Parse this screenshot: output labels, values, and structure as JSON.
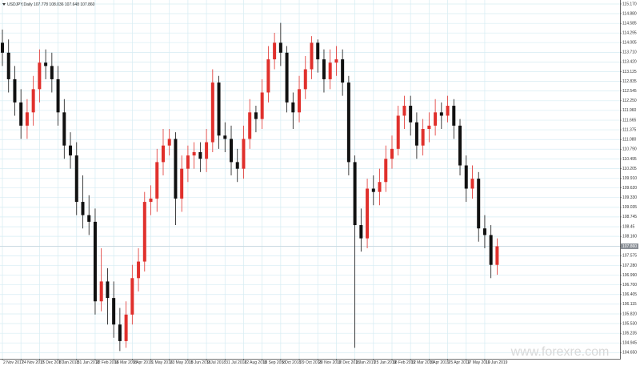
{
  "chart_data": {
    "type": "candlestick",
    "title": "USDJPY,Daily  107.778 108.036 107.648 107.860",
    "watermark": "www.forexre.com",
    "grid": true,
    "up_color": "#e0302c",
    "down_color": "#111111",
    "price_label": {
      "value": 107.86,
      "label": "107.860"
    },
    "categories": [
      "2 Nov 2017",
      null,
      null,
      "24 Nov 2017",
      null,
      null,
      "15 Dec 2017",
      null,
      null,
      "8 Jan 2018",
      null,
      null,
      "31 Jan 2018",
      null,
      null,
      "22 Feb 2018",
      null,
      null,
      "16 Mar 2018",
      null,
      null,
      "9 Apr 2018",
      null,
      null,
      "1 May 2018",
      null,
      null,
      "23 May 2018",
      null,
      null,
      "15 Jun 2018",
      null,
      null,
      "9 Jul 2018",
      null,
      null,
      "31 Jul 2018",
      null,
      null,
      "22 Aug 2018",
      null,
      null,
      "13 Sep 2018",
      null,
      null,
      "5 Oct 2018",
      null,
      null,
      "29 Oct 2018",
      null,
      null,
      "20 Nov 2018",
      null,
      null,
      "12 Dec 2018",
      null,
      null,
      "3 Jan 2019",
      null,
      null,
      "25 Jan 2019",
      null,
      null,
      "18 Feb 2019",
      null,
      null,
      "12 Mar 2019",
      null,
      null,
      "3 Apr 2019",
      null,
      null,
      "25 Apr 2019",
      null,
      null,
      "17 May 2019",
      null,
      null,
      "10 Jun 2019",
      null,
      null
    ],
    "open": [
      114.0,
      113.7,
      112.9,
      112.2,
      111.5,
      111.9,
      112.6,
      113.4,
      113.3,
      112.9,
      111.9,
      110.9,
      110.6,
      109.2,
      108.8,
      108.6,
      106.2,
      106.8,
      106.3,
      105.5,
      105.0,
      105.8,
      106.9,
      107.4,
      109.2,
      109.3,
      110.4,
      110.9,
      111.1,
      109.3,
      110.2,
      110.6,
      110.7,
      110.5,
      111.0,
      112.8,
      111.2,
      111.1,
      110.4,
      110.2,
      111.1,
      111.9,
      111.7,
      112.5,
      113.5,
      114.0,
      113.7,
      112.2,
      111.9,
      112.6,
      113.2,
      114.0,
      113.5,
      112.9,
      113.4,
      113.5,
      112.8,
      110.4,
      108.5,
      108.1,
      109.6,
      109.5,
      109.8,
      110.5,
      110.8,
      111.8,
      112.1,
      111.6,
      110.9,
      111.4,
      111.5,
      111.9,
      111.8,
      112.1,
      111.5,
      110.3,
      109.6,
      109.9,
      108.4,
      108.2,
      107.3
    ],
    "high": [
      114.4,
      114.1,
      113.3,
      112.6,
      112.3,
      113.0,
      113.8,
      113.8,
      113.7,
      113.3,
      112.3,
      111.3,
      111.0,
      110.0,
      109.4,
      109.0,
      107.8,
      107.2,
      106.8,
      106.0,
      106.2,
      107.3,
      107.8,
      109.5,
      109.7,
      110.8,
      111.4,
      111.4,
      111.3,
      110.6,
      110.9,
      111.0,
      111.0,
      111.4,
      113.2,
      113.0,
      111.6,
      111.5,
      110.8,
      111.5,
      112.3,
      112.1,
      112.9,
      113.9,
      114.3,
      114.6,
      113.9,
      112.5,
      113.0,
      113.6,
      114.2,
      114.1,
      113.8,
      113.8,
      113.9,
      113.8,
      113.0,
      110.6,
      109.0,
      109.9,
      110.0,
      110.2,
      110.9,
      111.2,
      112.1,
      112.4,
      112.4,
      111.9,
      111.7,
      111.9,
      112.3,
      112.2,
      112.4,
      112.3,
      111.7,
      110.6,
      110.3,
      110.1,
      108.8,
      108.5,
      108.1
    ],
    "low": [
      113.3,
      112.5,
      111.8,
      111.1,
      111.1,
      111.5,
      112.2,
      112.9,
      112.5,
      111.5,
      110.5,
      110.2,
      108.8,
      108.4,
      108.2,
      105.8,
      105.9,
      105.5,
      105.1,
      104.7,
      104.8,
      105.5,
      106.5,
      107.1,
      108.8,
      108.9,
      110.0,
      110.6,
      108.5,
      108.9,
      109.8,
      110.2,
      110.1,
      110.1,
      110.7,
      110.8,
      110.7,
      110.0,
      109.8,
      109.9,
      110.8,
      111.3,
      111.4,
      112.2,
      113.2,
      113.3,
      111.9,
      111.4,
      111.6,
      112.3,
      112.9,
      113.1,
      112.5,
      112.6,
      113.0,
      112.4,
      110.0,
      104.8,
      107.7,
      107.8,
      109.1,
      109.1,
      109.5,
      110.2,
      110.6,
      111.4,
      111.2,
      110.5,
      110.6,
      111.0,
      111.2,
      111.4,
      111.6,
      111.1,
      110.0,
      109.2,
      109.3,
      108.0,
      107.8,
      106.9,
      107.0
    ],
    "close": [
      113.7,
      112.9,
      112.2,
      111.5,
      111.9,
      112.6,
      113.4,
      113.3,
      112.9,
      111.9,
      110.9,
      110.6,
      109.2,
      108.8,
      108.6,
      106.2,
      106.8,
      106.3,
      105.5,
      105.0,
      105.8,
      106.9,
      107.4,
      109.2,
      109.3,
      110.4,
      110.9,
      111.1,
      109.3,
      110.2,
      110.6,
      110.7,
      110.5,
      111.0,
      112.8,
      111.2,
      111.1,
      110.4,
      110.2,
      111.1,
      111.9,
      111.7,
      112.5,
      113.5,
      114.0,
      113.7,
      112.2,
      111.9,
      112.6,
      113.2,
      114.0,
      113.5,
      112.9,
      113.4,
      113.5,
      112.8,
      110.4,
      108.5,
      108.1,
      109.6,
      109.5,
      109.8,
      110.5,
      110.8,
      111.8,
      112.1,
      111.6,
      110.9,
      111.4,
      111.5,
      111.9,
      111.8,
      112.1,
      111.5,
      110.3,
      109.6,
      109.9,
      108.4,
      108.2,
      107.3,
      107.86
    ],
    "ylim": [
      104.37,
      115.29
    ],
    "yticks": [
      {
        "value": 115.17,
        "label": "115.170"
      },
      {
        "value": 114.88,
        "label": "114.880"
      },
      114.585,
      114.295,
      114.005,
      {
        "value": 113.71,
        "label": "113.710"
      },
      {
        "value": 113.42,
        "label": "113.420"
      },
      113.125,
      112.835,
      112.545,
      {
        "value": 112.25,
        "label": "112.250"
      },
      {
        "value": 111.96,
        "label": "111.960"
      },
      111.665,
      111.375,
      {
        "value": 111.08,
        "label": "111.080"
      },
      {
        "value": 110.79,
        "label": "110.790"
      },
      110.495,
      110.205,
      {
        "value": 109.91,
        "label": "109.910"
      },
      {
        "value": 109.62,
        "label": "109.620"
      },
      {
        "value": 109.33,
        "label": "109.330"
      },
      109.035,
      108.745,
      108.45,
      {
        "value": 108.16,
        "label": "108.160"
      },
      107.865,
      107.575,
      {
        "value": 107.28,
        "label": "107.280"
      },
      {
        "value": 106.99,
        "label": "106.990"
      },
      {
        "value": 106.7,
        "label": "106.700"
      },
      106.405,
      106.115,
      {
        "value": 105.82,
        "label": "105.820"
      },
      {
        "value": 105.53,
        "label": "105.530"
      },
      105.235,
      104.945,
      {
        "value": 104.65,
        "label": "104.650"
      }
    ]
  }
}
